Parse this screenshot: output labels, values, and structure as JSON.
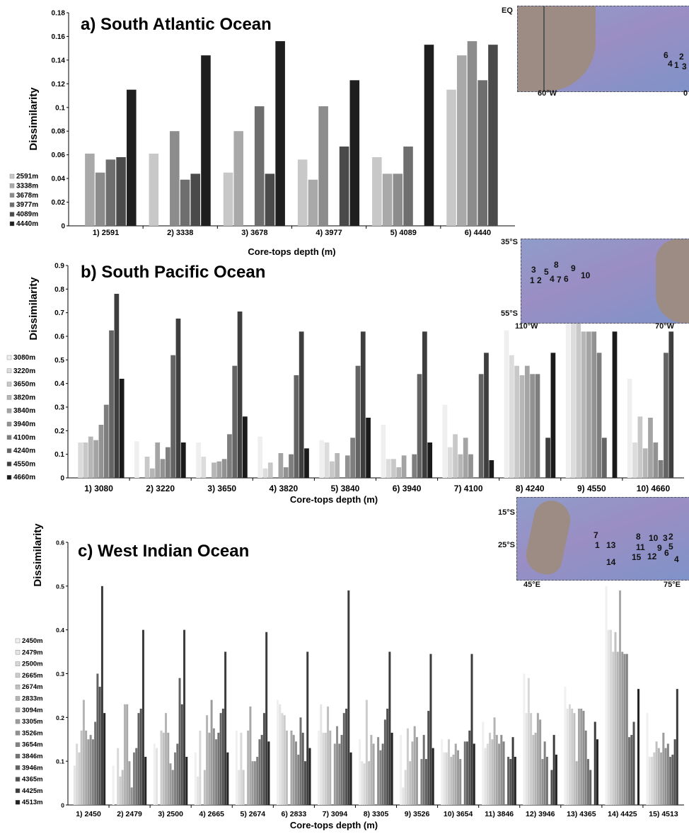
{
  "chart_data": [
    {
      "type": "bar",
      "title": "a) South Atlantic Ocean",
      "ylabel": "Dissimilarity",
      "xlabel": "Core-tops depth (m)",
      "ylim": [
        0,
        0.18
      ],
      "yticks": [
        "0",
        "0.02",
        "0.04",
        "0.06",
        "0.08",
        "0.1",
        "0.12",
        "0.14",
        "0.16",
        "0.18"
      ],
      "categories": [
        "1) 2591",
        "2) 3338",
        "3) 3678",
        "4) 3977",
        "5) 4089",
        "6) 4440"
      ],
      "series": [
        {
          "name": "2591m",
          "color": "#c8c8c8",
          "values": [
            null,
            0.061,
            0.045,
            0.056,
            0.058,
            0.115
          ]
        },
        {
          "name": "3338m",
          "color": "#a9a9a9",
          "values": [
            0.061,
            null,
            0.08,
            0.039,
            0.044,
            0.144
          ]
        },
        {
          "name": "3678m",
          "color": "#8c8c8c",
          "values": [
            0.045,
            0.08,
            null,
            0.101,
            0.044,
            0.156
          ]
        },
        {
          "name": "3977m",
          "color": "#6e6e6e",
          "values": [
            0.056,
            0.039,
            0.101,
            null,
            0.067,
            0.123
          ]
        },
        {
          "name": "4089m",
          "color": "#4a4a4a",
          "values": [
            0.058,
            0.044,
            0.044,
            0.067,
            null,
            0.153
          ]
        },
        {
          "name": "4440m",
          "color": "#1e1e1e",
          "values": [
            0.115,
            0.144,
            0.156,
            0.123,
            0.153,
            null
          ]
        }
      ],
      "map": {
        "top_label": "EQ",
        "bottom_left": "60°W",
        "bottom_right": "0",
        "stations": [
          "6",
          "2",
          "5",
          "4",
          "1",
          "3"
        ]
      }
    },
    {
      "type": "bar",
      "title": "b) South Pacific Ocean",
      "ylabel": "Dissimilarity",
      "xlabel": "Core-tops depth (m)",
      "ylim": [
        0,
        0.9
      ],
      "yticks": [
        "0",
        "0.1",
        "0.2",
        "0.3",
        "0.4",
        "0.5",
        "0.6",
        "0.7",
        "0.8",
        "0.9"
      ],
      "categories": [
        "1) 3080",
        "2) 3220",
        "3) 3650",
        "4) 3820",
        "5) 3840",
        "6) 3940",
        "7) 4100",
        "8) 4240",
        "9) 4550",
        "10) 4660"
      ],
      "series": [
        {
          "name": "3080m",
          "color": "#efefef",
          "values": [
            null,
            0.155,
            0.15,
            0.175,
            0.16,
            0.225,
            0.31,
            0.625,
            0.78,
            0.42
          ]
        },
        {
          "name": "3220m",
          "color": "#dcdcdc",
          "values": [
            0.15,
            null,
            0.09,
            0.04,
            0.15,
            0.08,
            0.13,
            0.52,
            0.675,
            0.15
          ]
        },
        {
          "name": "3650m",
          "color": "#c8c8c8",
          "values": [
            0.15,
            0.09,
            null,
            0.065,
            0.07,
            0.08,
            0.185,
            0.475,
            0.705,
            0.26
          ]
        },
        {
          "name": "3820m",
          "color": "#b6b6b6",
          "values": [
            0.175,
            0.04,
            0.065,
            null,
            0.105,
            0.045,
            0.1,
            0.435,
            0.62,
            0.125
          ]
        },
        {
          "name": "3840m",
          "color": "#a4a4a4",
          "values": [
            0.16,
            0.15,
            0.07,
            0.105,
            null,
            0.095,
            0.17,
            0.475,
            0.62,
            0.255
          ]
        },
        {
          "name": "3940m",
          "color": "#929292",
          "values": [
            0.225,
            0.08,
            0.08,
            0.045,
            0.095,
            null,
            0.1,
            0.44,
            0.62,
            0.15
          ]
        },
        {
          "name": "4100m",
          "color": "#7e7e7e",
          "values": [
            0.31,
            0.13,
            0.185,
            0.1,
            0.17,
            0.1,
            null,
            0.44,
            0.53,
            0.075
          ]
        },
        {
          "name": "4240m",
          "color": "#646464",
          "values": [
            0.625,
            0.52,
            0.475,
            0.435,
            0.475,
            0.44,
            0.44,
            null,
            0.17,
            0.53
          ]
        },
        {
          "name": "4550m",
          "color": "#3e3e3e",
          "values": [
            0.78,
            0.675,
            0.705,
            0.62,
            0.62,
            0.62,
            0.53,
            0.17,
            null,
            0.62
          ]
        },
        {
          "name": "4660m",
          "color": "#1a1a1a",
          "values": [
            0.42,
            0.15,
            0.26,
            0.125,
            0.255,
            0.15,
            0.075,
            0.53,
            0.62,
            null
          ]
        }
      ],
      "map": {
        "top_label": "35°S",
        "bottom_left": "55°S",
        "bottom_left2": "110°W",
        "bottom_right": "70°W",
        "stations": [
          "3",
          "1",
          "2",
          "5",
          "8",
          "4",
          "7",
          "6",
          "9",
          "10"
        ]
      }
    },
    {
      "type": "bar",
      "title": "c) West Indian Ocean",
      "ylabel": "Dissimilarity",
      "xlabel": "Core-tops depth (m)",
      "ylim": [
        0,
        0.6
      ],
      "yticks": [
        "0",
        "0.1",
        "0.2",
        "0.3",
        "0.4",
        "0.5",
        "0.6"
      ],
      "categories": [
        "1) 2450",
        "2) 2479",
        "3) 2500",
        "4) 2665",
        "5) 2674",
        "6) 2833",
        "7) 3094",
        "8) 3305",
        "9) 3526",
        "10) 3654",
        "11) 3846",
        "12) 3946",
        "13) 4365",
        "14) 4425",
        "15) 4513"
      ],
      "series": [
        {
          "name": "2450m",
          "color": "#f0f0f0",
          "values": [
            null,
            0.09,
            0.14,
            0.12,
            0.17,
            0.24,
            0.17,
            0.15,
            0.16,
            0.15,
            0.19,
            0.3,
            0.27,
            0.5,
            0.21
          ]
        },
        {
          "name": "2479m",
          "color": "#e4e4e4",
          "values": [
            0.09,
            null,
            0.13,
            0.065,
            0.08,
            0.23,
            0.23,
            0.1,
            0.04,
            0.12,
            0.13,
            0.21,
            0.22,
            0.4,
            0.11
          ]
        },
        {
          "name": "2500m",
          "color": "#d8d8d8",
          "values": [
            0.14,
            0.13,
            null,
            0.17,
            0.165,
            0.21,
            0.165,
            0.095,
            0.08,
            0.12,
            0.14,
            0.29,
            0.23,
            0.4,
            0.11
          ]
        },
        {
          "name": "2665m",
          "color": "#cccccc",
          "values": [
            0.12,
            0.065,
            0.17,
            null,
            0.08,
            0.205,
            0.165,
            0.24,
            0.175,
            0.15,
            0.165,
            0.21,
            0.22,
            0.35,
            0.12
          ]
        },
        {
          "name": "2674m",
          "color": "#c0c0c0",
          "values": [
            0.17,
            0.08,
            0.165,
            0.08,
            null,
            0.17,
            0.225,
            0.1,
            0.1,
            0.11,
            0.15,
            0.16,
            0.21,
            0.395,
            0.145
          ]
        },
        {
          "name": "2833m",
          "color": "#b4b4b4",
          "values": [
            0.24,
            0.23,
            0.21,
            0.205,
            0.17,
            null,
            0.17,
            0.16,
            0.145,
            0.115,
            0.2,
            0.165,
            0.1,
            0.35,
            0.13
          ]
        },
        {
          "name": "3094m",
          "color": "#a8a8a8",
          "values": [
            0.17,
            0.23,
            0.165,
            0.165,
            0.225,
            0.17,
            null,
            0.14,
            0.18,
            0.14,
            0.16,
            0.21,
            0.22,
            0.49,
            0.12
          ]
        },
        {
          "name": "3305m",
          "color": "#9c9c9c",
          "values": [
            0.15,
            0.1,
            0.095,
            0.24,
            0.1,
            0.16,
            0.14,
            null,
            0.155,
            0.125,
            0.14,
            0.195,
            0.22,
            0.35,
            0.165
          ]
        },
        {
          "name": "3526m",
          "color": "#909090",
          "values": [
            0.16,
            0.04,
            0.08,
            0.175,
            0.1,
            0.145,
            0.18,
            0.155,
            null,
            0.105,
            0.16,
            0.105,
            0.215,
            0.345,
            0.13
          ]
        },
        {
          "name": "3654m",
          "color": "#828282",
          "values": [
            0.15,
            0.12,
            0.12,
            0.15,
            0.11,
            0.115,
            0.14,
            0.125,
            0.105,
            null,
            0.145,
            0.145,
            0.17,
            0.345,
            0.14
          ]
        },
        {
          "name": "3846m",
          "color": "#727272",
          "values": [
            0.19,
            0.13,
            0.14,
            0.165,
            0.15,
            0.2,
            0.16,
            0.14,
            0.16,
            0.145,
            null,
            0.11,
            0.105,
            0.155,
            0.11
          ]
        },
        {
          "name": "3946m",
          "color": "#626262",
          "values": [
            0.3,
            0.21,
            0.29,
            0.21,
            0.16,
            0.165,
            0.21,
            0.195,
            0.105,
            0.145,
            0.11,
            null,
            0.08,
            0.16,
            0.115
          ]
        },
        {
          "name": "4365m",
          "color": "#525252",
          "values": [
            0.27,
            0.22,
            0.23,
            0.22,
            0.21,
            0.1,
            0.22,
            0.22,
            0.215,
            0.17,
            0.105,
            0.08,
            null,
            0.19,
            0.15
          ]
        },
        {
          "name": "4425m",
          "color": "#3c3c3c",
          "values": [
            0.5,
            0.4,
            0.4,
            0.35,
            0.395,
            0.35,
            0.49,
            0.35,
            0.345,
            0.345,
            0.155,
            0.16,
            0.19,
            null,
            0.265
          ]
        },
        {
          "name": "4513m",
          "color": "#222222",
          "values": [
            0.21,
            0.11,
            0.11,
            0.12,
            0.145,
            0.13,
            0.12,
            0.165,
            0.13,
            0.14,
            0.11,
            0.115,
            0.15,
            0.265,
            null
          ]
        }
      ],
      "map": {
        "top_label": "15°S",
        "mid_label": "25°S",
        "bottom_left": "45°E",
        "bottom_right": "75°E",
        "stations": [
          "7",
          "1",
          "13",
          "8",
          "10",
          "3",
          "2",
          "11",
          "9",
          "5",
          "15",
          "12",
          "6",
          "4",
          "14"
        ]
      }
    }
  ]
}
